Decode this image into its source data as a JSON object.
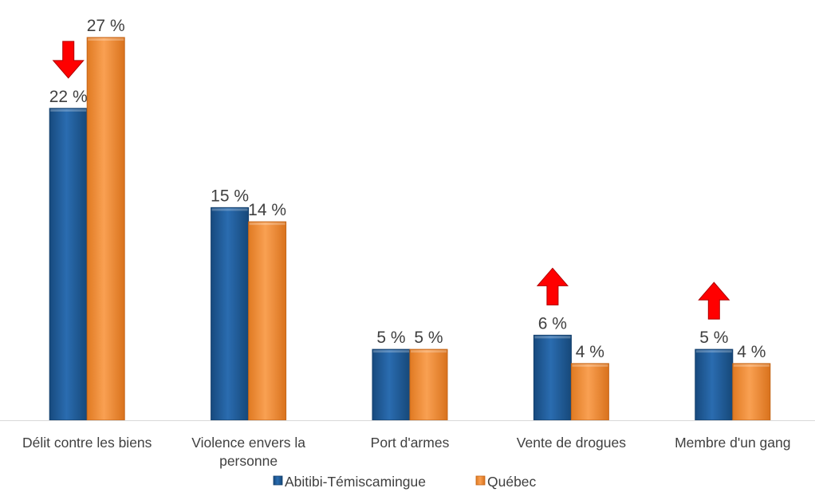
{
  "chart_data": {
    "type": "bar",
    "categories": [
      [
        "Délit contre les biens"
      ],
      [
        "Violence envers la",
        "personne"
      ],
      [
        "Port d'armes"
      ],
      [
        "Vente de drogues"
      ],
      [
        "Membre d'un gang"
      ]
    ],
    "series": [
      {
        "name": "Abitibi-Témiscamingue",
        "color": "#1F5C99",
        "values": [
          22,
          15,
          5,
          6,
          5
        ],
        "labels": [
          "22 %",
          "15 %",
          "5 %",
          "6 %",
          "5 %"
        ]
      },
      {
        "name": "Québec",
        "color": "#F28A30",
        "values": [
          27,
          14,
          5,
          4,
          4
        ],
        "labels": [
          "27 %",
          "14 %",
          "5 %",
          "4 %",
          "4 %"
        ]
      }
    ],
    "ylim": [
      0,
      27
    ],
    "grid": false,
    "legend": "bottom",
    "annotations": [
      {
        "category_index": 0,
        "series_index": 0,
        "icon": "arrow-down-icon",
        "color": "#FF0000"
      },
      {
        "category_index": 3,
        "series_index": 0,
        "icon": "arrow-up-icon",
        "color": "#FF0000"
      },
      {
        "category_index": 4,
        "series_index": 0,
        "icon": "arrow-up-icon",
        "color": "#FF0000"
      }
    ]
  }
}
